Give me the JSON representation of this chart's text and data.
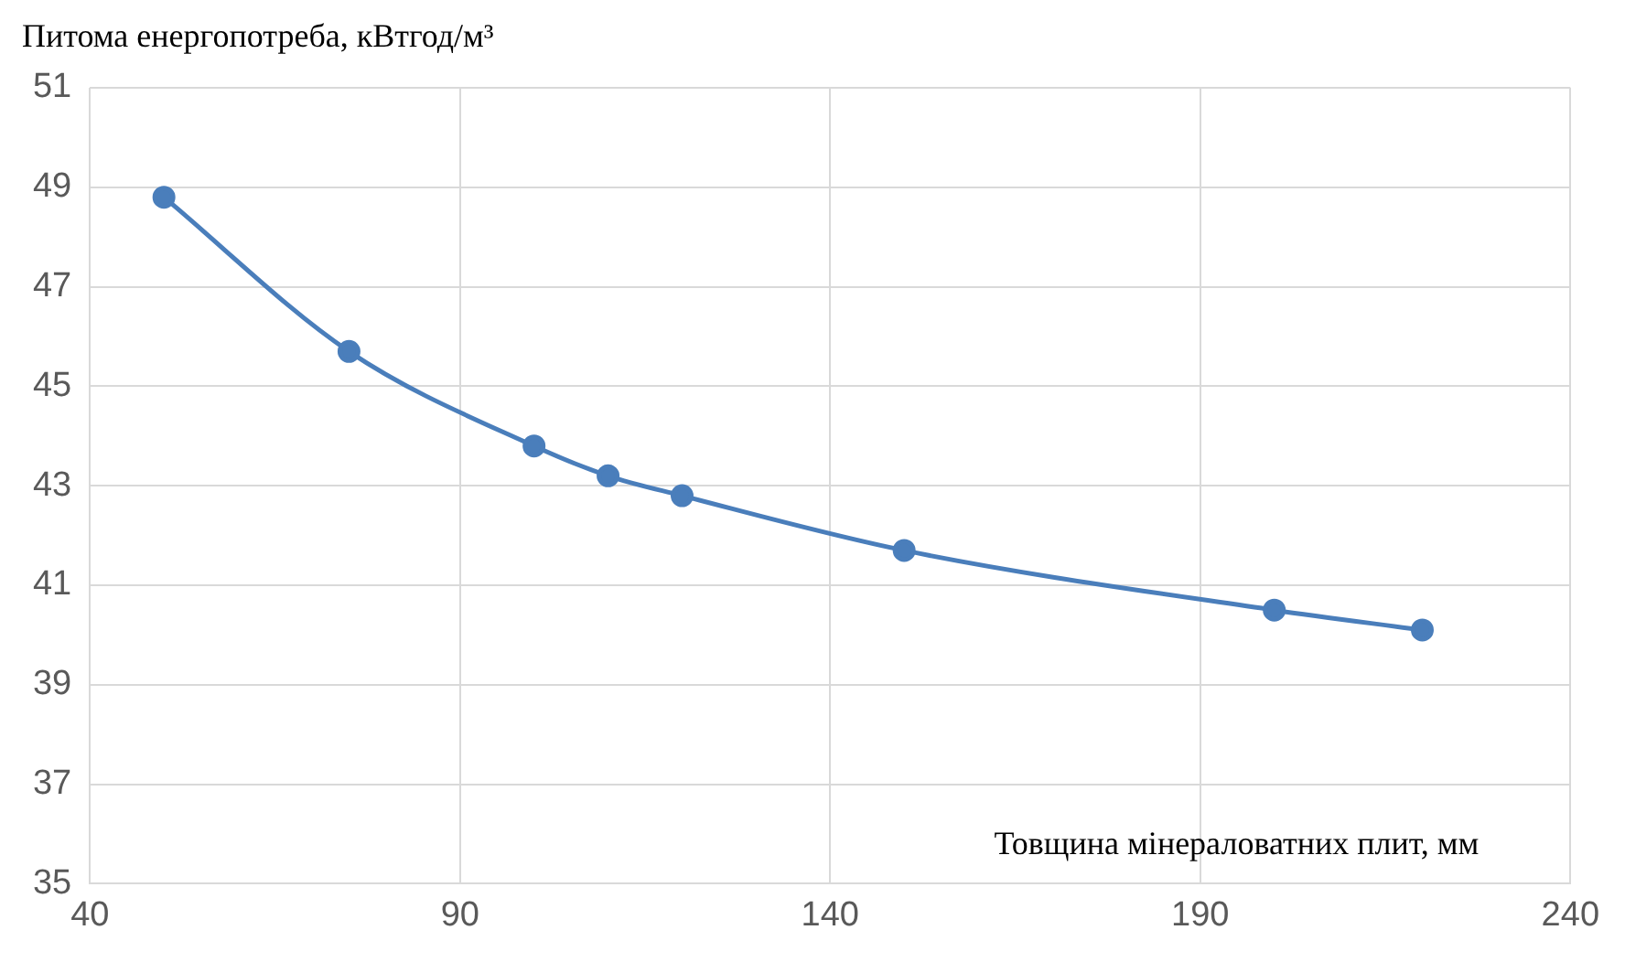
{
  "chart_data": {
    "type": "line",
    "ylabel": "Питома енергопотреба, кВтгод/м³",
    "xlabel": "Товщина мінераловатних плит, мм",
    "x": [
      50,
      75,
      100,
      110,
      120,
      150,
      200,
      220
    ],
    "series": [
      {
        "color": "#4a7ebb",
        "values": [
          48.8,
          45.7,
          43.8,
          43.2,
          42.8,
          41.7,
          40.5,
          40.1
        ]
      }
    ],
    "xlim": [
      40,
      240
    ],
    "xticks": [
      40,
      90,
      140,
      190,
      240
    ],
    "ylim": [
      35,
      51
    ],
    "yticks": [
      35,
      37,
      39,
      41,
      43,
      45,
      47,
      49,
      51
    ],
    "grid": true,
    "legend": false,
    "marker": "circle",
    "line_style": "solid"
  }
}
